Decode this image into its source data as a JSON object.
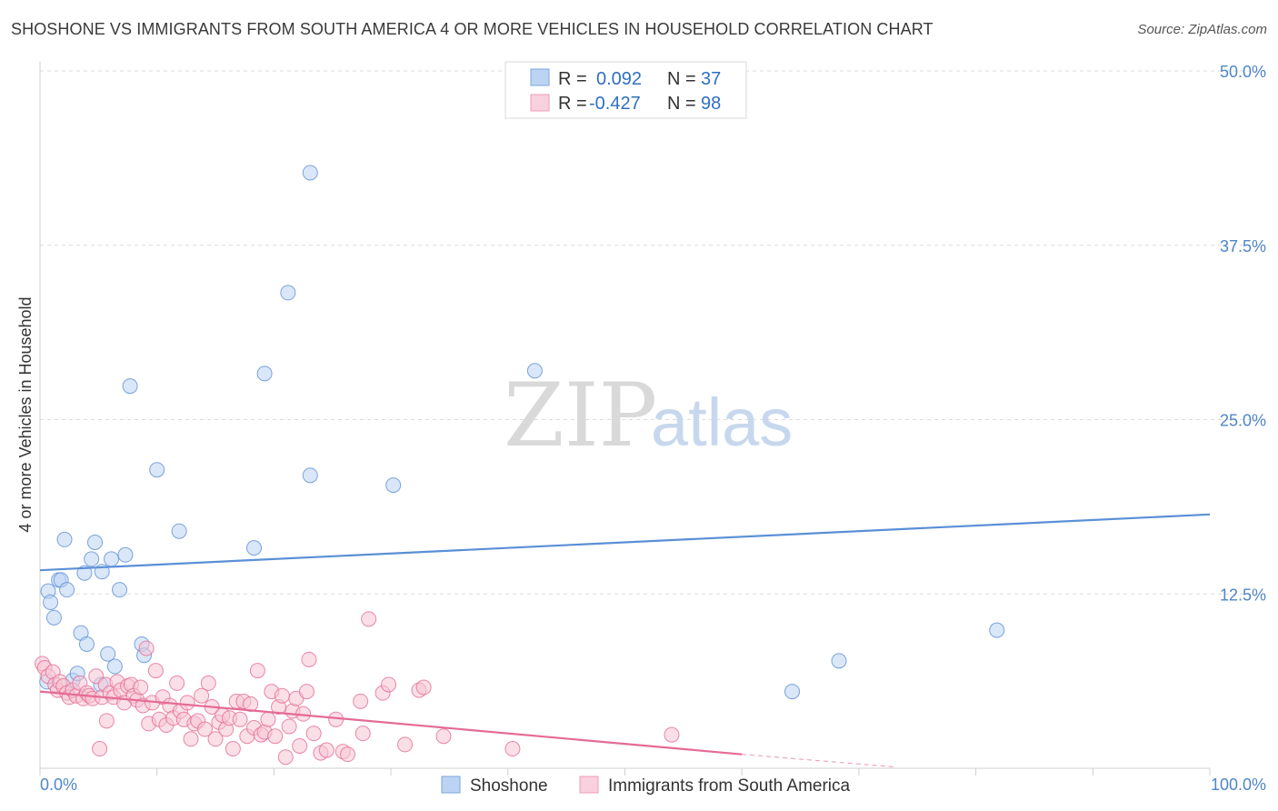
{
  "header": {
    "title": "SHOSHONE VS IMMIGRANTS FROM SOUTH AMERICA 4 OR MORE VEHICLES IN HOUSEHOLD CORRELATION CHART",
    "source": "Source: ZipAtlas.com"
  },
  "watermark": {
    "zip": "ZIP",
    "atlas": "atlas"
  },
  "legend": {
    "series": [
      {
        "r_label": "R =",
        "r_value": "0.092",
        "n_label": "N =",
        "n_value": "37",
        "color": "#a8c8f0"
      },
      {
        "r_label": "R =",
        "r_value": "-0.427",
        "n_label": "N =",
        "n_value": "98",
        "color": "#f6b8cc"
      }
    ]
  },
  "bottom_legend": [
    "Shoshone",
    "Immigrants from South America"
  ],
  "chart_data": {
    "type": "scatter",
    "title": "SHOSHONE VS IMMIGRANTS FROM SOUTH AMERICA 4 OR MORE VEHICLES IN HOUSEHOLD CORRELATION CHART",
    "xlabel": "",
    "ylabel": "4 or more Vehicles in Household",
    "xlim": [
      0,
      100
    ],
    "ylim": [
      0,
      50
    ],
    "x_tick_labels": [
      "0.0%",
      "100.0%"
    ],
    "y_ticks": [
      {
        "value": 12.5,
        "label": "12.5%"
      },
      {
        "value": 25,
        "label": "25.0%"
      },
      {
        "value": 37.5,
        "label": "37.5%"
      },
      {
        "value": 50,
        "label": "50.0%"
      }
    ],
    "series": [
      {
        "name": "Shoshone",
        "color": "#5b8fd6",
        "fill": "#bcd4f3",
        "trend": {
          "x": [
            0,
            100
          ],
          "y": [
            14.2,
            18.2
          ]
        },
        "points": [
          [
            0.6,
            6.2
          ],
          [
            0.7,
            12.7
          ],
          [
            0.9,
            11.9
          ],
          [
            1.2,
            10.8
          ],
          [
            1.6,
            13.5
          ],
          [
            1.8,
            13.5
          ],
          [
            2.1,
            16.4
          ],
          [
            2.3,
            12.8
          ],
          [
            2.8,
            6.3
          ],
          [
            3.2,
            6.8
          ],
          [
            3.5,
            9.7
          ],
          [
            3.8,
            14.0
          ],
          [
            4.0,
            8.9
          ],
          [
            4.4,
            15.0
          ],
          [
            4.7,
            16.2
          ],
          [
            5.2,
            6.0
          ],
          [
            5.3,
            14.1
          ],
          [
            5.8,
            8.2
          ],
          [
            6.1,
            15.0
          ],
          [
            6.4,
            7.3
          ],
          [
            6.8,
            12.8
          ],
          [
            7.3,
            15.3
          ],
          [
            7.7,
            27.4
          ],
          [
            8.7,
            8.9
          ],
          [
            8.9,
            8.1
          ],
          [
            10.0,
            21.4
          ],
          [
            11.9,
            17.0
          ],
          [
            18.3,
            15.8
          ],
          [
            19.2,
            28.3
          ],
          [
            21.2,
            34.1
          ],
          [
            23.1,
            21.0
          ],
          [
            23.1,
            42.7
          ],
          [
            30.2,
            20.3
          ],
          [
            42.3,
            28.5
          ],
          [
            64.3,
            5.5
          ],
          [
            68.3,
            7.7
          ],
          [
            81.8,
            9.9
          ]
        ]
      },
      {
        "name": "Immigrants from South America",
        "color": "#e46b95",
        "fill": "#f6c4d4",
        "trend": {
          "x": [
            0,
            60
          ],
          "y": [
            5.5,
            1.0
          ]
        },
        "trend_dashed": {
          "x": [
            60,
            73
          ],
          "y": [
            1.0,
            0.1
          ]
        },
        "points": [
          [
            0.2,
            7.5
          ],
          [
            0.4,
            7.2
          ],
          [
            0.7,
            6.6
          ],
          [
            1.1,
            6.9
          ],
          [
            1.3,
            6.0
          ],
          [
            1.5,
            5.6
          ],
          [
            1.7,
            6.2
          ],
          [
            2.0,
            5.9
          ],
          [
            2.3,
            5.4
          ],
          [
            2.5,
            5.1
          ],
          [
            2.8,
            5.6
          ],
          [
            3.1,
            5.2
          ],
          [
            3.4,
            6.1
          ],
          [
            3.7,
            5.0
          ],
          [
            4.0,
            5.4
          ],
          [
            4.2,
            5.2
          ],
          [
            4.5,
            5.0
          ],
          [
            4.8,
            6.6
          ],
          [
            5.1,
            1.4
          ],
          [
            5.3,
            5.1
          ],
          [
            5.6,
            6.0
          ],
          [
            5.7,
            3.4
          ],
          [
            6.0,
            5.4
          ],
          [
            6.3,
            5.1
          ],
          [
            6.6,
            6.2
          ],
          [
            6.9,
            5.6
          ],
          [
            7.2,
            4.7
          ],
          [
            7.5,
            5.9
          ],
          [
            7.8,
            6.0
          ],
          [
            8.0,
            5.2
          ],
          [
            8.3,
            4.9
          ],
          [
            8.6,
            5.8
          ],
          [
            8.8,
            4.5
          ],
          [
            9.1,
            8.6
          ],
          [
            9.3,
            3.2
          ],
          [
            9.6,
            4.7
          ],
          [
            9.9,
            7.0
          ],
          [
            10.2,
            3.5
          ],
          [
            10.5,
            5.1
          ],
          [
            10.8,
            3.1
          ],
          [
            11.1,
            4.5
          ],
          [
            11.4,
            3.6
          ],
          [
            11.7,
            6.1
          ],
          [
            12.0,
            4.1
          ],
          [
            12.3,
            3.5
          ],
          [
            12.6,
            4.7
          ],
          [
            12.9,
            2.1
          ],
          [
            13.2,
            3.2
          ],
          [
            13.5,
            3.4
          ],
          [
            13.8,
            5.2
          ],
          [
            14.1,
            2.8
          ],
          [
            14.4,
            6.1
          ],
          [
            14.7,
            4.4
          ],
          [
            15.0,
            2.1
          ],
          [
            15.3,
            3.3
          ],
          [
            15.6,
            3.8
          ],
          [
            15.9,
            2.8
          ],
          [
            16.2,
            3.6
          ],
          [
            16.5,
            1.4
          ],
          [
            16.8,
            4.8
          ],
          [
            17.1,
            3.5
          ],
          [
            17.4,
            4.8
          ],
          [
            17.7,
            2.3
          ],
          [
            18.0,
            4.6
          ],
          [
            18.3,
            2.9
          ],
          [
            18.6,
            7.0
          ],
          [
            18.9,
            2.4
          ],
          [
            19.2,
            2.6
          ],
          [
            19.5,
            3.5
          ],
          [
            19.8,
            5.5
          ],
          [
            20.1,
            2.3
          ],
          [
            20.4,
            4.4
          ],
          [
            20.7,
            5.2
          ],
          [
            21.0,
            0.8
          ],
          [
            21.3,
            3.0
          ],
          [
            21.6,
            4.1
          ],
          [
            21.9,
            5.0
          ],
          [
            22.2,
            1.6
          ],
          [
            22.5,
            3.9
          ],
          [
            22.8,
            5.5
          ],
          [
            23.0,
            7.8
          ],
          [
            23.4,
            2.5
          ],
          [
            24.0,
            1.1
          ],
          [
            24.5,
            1.3
          ],
          [
            25.3,
            3.5
          ],
          [
            25.9,
            1.2
          ],
          [
            26.3,
            1.0
          ],
          [
            27.4,
            4.8
          ],
          [
            27.6,
            2.5
          ],
          [
            28.1,
            10.7
          ],
          [
            29.3,
            5.4
          ],
          [
            29.8,
            6.0
          ],
          [
            31.2,
            1.7
          ],
          [
            32.4,
            5.6
          ],
          [
            32.8,
            5.8
          ],
          [
            34.5,
            2.3
          ],
          [
            40.4,
            1.4
          ],
          [
            54.0,
            2.4
          ]
        ]
      }
    ]
  }
}
